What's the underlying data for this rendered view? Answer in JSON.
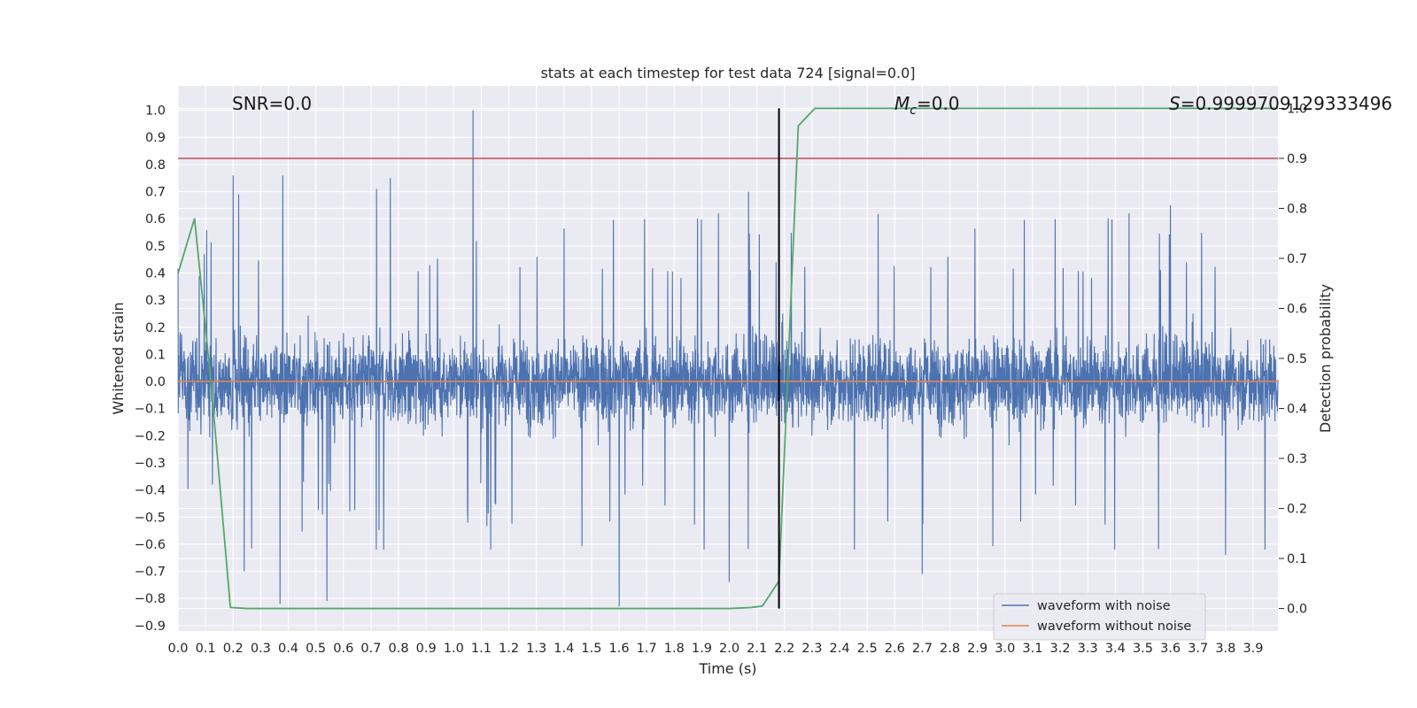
{
  "chart_data": {
    "type": "line",
    "title": "stats at each timestep for test data 724 [signal=0.0]",
    "xlabel": "Time (s)",
    "ylabel": "Whitened strain",
    "y2label": "Detection probability",
    "xlim": [
      0.0,
      3.99
    ],
    "ylim": [
      -0.92,
      1.09
    ],
    "y2lim": [
      -0.045,
      1.045
    ],
    "x_ticks": [
      "0.0",
      "0.1",
      "0.2",
      "0.3",
      "0.4",
      "0.5",
      "0.6",
      "0.7",
      "0.8",
      "0.9",
      "1.0",
      "1.1",
      "1.2",
      "1.3",
      "1.4",
      "1.5",
      "1.6",
      "1.7",
      "1.8",
      "1.9",
      "2.0",
      "2.1",
      "2.2",
      "2.3",
      "2.4",
      "2.5",
      "2.6",
      "2.7",
      "2.8",
      "2.9",
      "3.0",
      "3.1",
      "3.2",
      "3.3",
      "3.4",
      "3.5",
      "3.6",
      "3.7",
      "3.8",
      "3.9"
    ],
    "y_ticks": [
      "1.0",
      "0.9",
      "0.8",
      "0.7",
      "0.6",
      "0.5",
      "0.4",
      "0.3",
      "0.2",
      "0.1",
      "0.0",
      "−0.1",
      "−0.2",
      "−0.3",
      "−0.4",
      "−0.5",
      "−0.6",
      "−0.7",
      "−0.8",
      "−0.9"
    ],
    "y2_ticks": [
      "1.0",
      "0.9",
      "0.8",
      "0.7",
      "0.6",
      "0.5",
      "0.4",
      "0.3",
      "0.2",
      "0.1",
      "0.0"
    ],
    "series": [
      {
        "name": "waveform with noise",
        "color": "#4c72b0",
        "description": "dense noisy whitened strain, roughly within -0.3..0.3 with spikes",
        "spikes": [
          {
            "x": 0.2,
            "y": 0.76
          },
          {
            "x": 0.22,
            "y": 0.69
          },
          {
            "x": 0.24,
            "y": -0.7
          },
          {
            "x": 0.37,
            "y": -0.82
          },
          {
            "x": 0.38,
            "y": 0.76
          },
          {
            "x": 0.54,
            "y": -0.81
          },
          {
            "x": 0.72,
            "y": 0.71
          },
          {
            "x": 0.77,
            "y": 0.75
          },
          {
            "x": 1.07,
            "y": 1.0
          },
          {
            "x": 1.6,
            "y": -0.83
          },
          {
            "x": 2.0,
            "y": -0.74
          },
          {
            "x": 2.07,
            "y": 0.7
          },
          {
            "x": 2.7,
            "y": -0.71
          },
          {
            "x": 3.6,
            "y": 0.65
          },
          {
            "x": 3.8,
            "y": -0.64
          }
        ]
      },
      {
        "name": "waveform without noise",
        "color": "#dd8452",
        "x": [
          0.0,
          3.99
        ],
        "y": [
          0.0,
          0.0
        ]
      },
      {
        "name": "detection probability",
        "color": "#55a868",
        "axis": "right",
        "x": [
          0.0,
          0.06,
          0.12,
          0.19,
          0.25,
          0.3,
          0.5,
          1.0,
          1.5,
          2.0,
          2.08,
          2.12,
          2.18,
          2.25,
          2.31,
          2.5,
          3.0,
          3.5,
          3.99
        ],
        "y": [
          0.67,
          0.78,
          0.45,
          0.002,
          0.0,
          0.0,
          0.0,
          0.0,
          0.0,
          0.0,
          0.002,
          0.005,
          0.055,
          0.965,
          1.0,
          1.0,
          1.0,
          1.0,
          1.0
        ]
      }
    ],
    "threshold": {
      "value": 0.9,
      "axis": "right",
      "color": "#c44e52"
    },
    "vline": {
      "x": 2.18,
      "color": "#000000"
    },
    "annotations": {
      "snr": "SNR=0.0",
      "mc_symbol": "M",
      "mc_sub": "c",
      "mc_value": "=0.0",
      "s_symbol": "S",
      "s_value": "=0.9999709129333496"
    },
    "legend": {
      "placement": "lower-right",
      "entries": [
        "waveform with noise",
        "waveform without noise"
      ]
    }
  }
}
